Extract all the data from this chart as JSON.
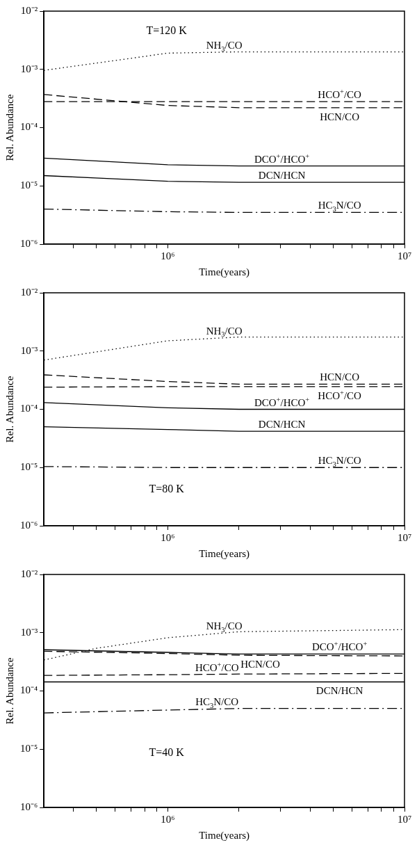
{
  "chart_data": [
    {
      "type": "line",
      "xlabel": "Time(years)",
      "ylabel": "Rel. Abundance",
      "annotations": [
        "T=120 K"
      ],
      "log": "xy",
      "legend": false,
      "marker": "none",
      "xlim": [
        300000,
        10000000
      ],
      "ylim": [
        1e-06,
        0.01
      ],
      "xticks": [
        {
          "value": 400000,
          "label": null
        },
        {
          "value": 500000,
          "label": null
        },
        {
          "value": 600000,
          "label": null
        },
        {
          "value": 700000,
          "label": null
        },
        {
          "value": 800000,
          "label": null
        },
        {
          "value": 900000,
          "label": null
        },
        {
          "value": 1000000,
          "label": "10⁶"
        },
        {
          "value": 2000000,
          "label": null
        },
        {
          "value": 3000000,
          "label": null
        },
        {
          "value": 4000000,
          "label": null
        },
        {
          "value": 5000000,
          "label": null
        },
        {
          "value": 6000000,
          "label": null
        },
        {
          "value": 7000000,
          "label": null
        },
        {
          "value": 8000000,
          "label": null
        },
        {
          "value": 9000000,
          "label": null
        },
        {
          "value": 10000000,
          "label": "10⁷"
        }
      ],
      "yticks": [
        {
          "value": 1e-06,
          "label": "10⁻⁶"
        },
        {
          "value": 1e-05,
          "label": "10⁻⁵"
        },
        {
          "value": 0.0001,
          "label": "10⁻⁴"
        },
        {
          "value": 0.001,
          "label": "10⁻³"
        },
        {
          "value": 0.01,
          "label": "10⁻²"
        }
      ],
      "x": [
        300000,
        1000000,
        2000000,
        10000000
      ],
      "series": [
        {
          "name": "NH$_{3}$/CO",
          "color": "#000000",
          "line_style": "dotted",
          "values": [
            0.00096,
            0.0019,
            0.002,
            0.002
          ]
        },
        {
          "name": "HCO$^{+}$/CO",
          "color": "#000000",
          "line_style": "dashed",
          "values": [
            0.00028,
            0.00028,
            0.00028,
            0.00028
          ]
        },
        {
          "name": "HCN/CO",
          "color": "#000000",
          "line_style": "dashed",
          "values": [
            0.00037,
            0.00024,
            0.00022,
            0.00022
          ]
        },
        {
          "name": "DCO$^{+}$/HCO$^{+}$",
          "color": "#000000",
          "line_style": "solid",
          "values": [
            3e-05,
            2.3e-05,
            2.2e-05,
            2.2e-05
          ]
        },
        {
          "name": "DCN/HCN",
          "color": "#000000",
          "line_style": "solid",
          "values": [
            1.5e-05,
            1.2e-05,
            1.15e-05,
            1.15e-05
          ]
        },
        {
          "name": "HC$_{3}$N/CO",
          "color": "#000000",
          "line_style": "dashdot",
          "values": [
            4e-06,
            3.6e-06,
            3.5e-06,
            3.5e-06
          ]
        }
      ]
    },
    {
      "type": "line",
      "xlabel": "Time(years)",
      "ylabel": "Rel. Abundance",
      "annotations": [
        "T=80 K"
      ],
      "log": "xy",
      "legend": false,
      "marker": "none",
      "xlim": [
        300000,
        10000000
      ],
      "ylim": [
        1e-06,
        0.01
      ],
      "xticks": [
        {
          "value": 400000,
          "label": null
        },
        {
          "value": 500000,
          "label": null
        },
        {
          "value": 600000,
          "label": null
        },
        {
          "value": 700000,
          "label": null
        },
        {
          "value": 800000,
          "label": null
        },
        {
          "value": 900000,
          "label": null
        },
        {
          "value": 1000000,
          "label": "10⁶"
        },
        {
          "value": 2000000,
          "label": null
        },
        {
          "value": 3000000,
          "label": null
        },
        {
          "value": 4000000,
          "label": null
        },
        {
          "value": 5000000,
          "label": null
        },
        {
          "value": 6000000,
          "label": null
        },
        {
          "value": 7000000,
          "label": null
        },
        {
          "value": 8000000,
          "label": null
        },
        {
          "value": 9000000,
          "label": null
        },
        {
          "value": 10000000,
          "label": "10⁷"
        }
      ],
      "yticks": [
        {
          "value": 1e-06,
          "label": "10⁻⁶"
        },
        {
          "value": 1e-05,
          "label": "10⁻⁵"
        },
        {
          "value": 0.0001,
          "label": "10⁻⁴"
        },
        {
          "value": 0.001,
          "label": "10⁻³"
        },
        {
          "value": 0.01,
          "label": "10⁻²"
        }
      ],
      "x": [
        300000,
        1000000,
        2000000,
        10000000
      ],
      "series": [
        {
          "name": "NH$_{3}$/CO",
          "color": "#000000",
          "line_style": "dotted",
          "values": [
            0.0007,
            0.0015,
            0.00174,
            0.00174
          ]
        },
        {
          "name": "HCN/CO",
          "color": "#000000",
          "line_style": "dashed",
          "values": [
            0.00039,
            0.0003,
            0.00027,
            0.00027
          ]
        },
        {
          "name": "HCO$^{+}$/CO",
          "color": "#000000",
          "line_style": "dashed",
          "values": [
            0.00024,
            0.000245,
            0.000245,
            0.000245
          ]
        },
        {
          "name": "DCO$^{+}$/HCO$^{+}$",
          "color": "#000000",
          "line_style": "solid",
          "values": [
            0.00013,
            0.000106,
            0.0001,
            0.0001
          ]
        },
        {
          "name": "DCN/HCN",
          "color": "#000000",
          "line_style": "solid",
          "values": [
            5e-05,
            4.5e-05,
            4.2e-05,
            4.2e-05
          ]
        },
        {
          "name": "HC$_{3}$N/CO",
          "color": "#000000",
          "line_style": "dashdot",
          "values": [
            1.04e-05,
            1e-05,
            1e-05,
            1e-05
          ]
        }
      ]
    },
    {
      "type": "line",
      "xlabel": "Time(years)",
      "ylabel": "Rel. Abundance",
      "annotations": [
        "T=40 K"
      ],
      "log": "xy",
      "legend": false,
      "marker": "none",
      "xlim": [
        300000,
        10000000
      ],
      "ylim": [
        1e-06,
        0.01
      ],
      "xticks": [
        {
          "value": 400000,
          "label": null
        },
        {
          "value": 500000,
          "label": null
        },
        {
          "value": 600000,
          "label": null
        },
        {
          "value": 700000,
          "label": null
        },
        {
          "value": 800000,
          "label": null
        },
        {
          "value": 900000,
          "label": null
        },
        {
          "value": 1000000,
          "label": "10⁶"
        },
        {
          "value": 2000000,
          "label": null
        },
        {
          "value": 3000000,
          "label": null
        },
        {
          "value": 4000000,
          "label": null
        },
        {
          "value": 5000000,
          "label": null
        },
        {
          "value": 6000000,
          "label": null
        },
        {
          "value": 7000000,
          "label": null
        },
        {
          "value": 8000000,
          "label": null
        },
        {
          "value": 9000000,
          "label": null
        },
        {
          "value": 10000000,
          "label": "10⁷"
        }
      ],
      "yticks": [
        {
          "value": 1e-06,
          "label": "10⁻⁶"
        },
        {
          "value": 1e-05,
          "label": "10⁻⁵"
        },
        {
          "value": 0.0001,
          "label": "10⁻⁴"
        },
        {
          "value": 0.001,
          "label": "10⁻³"
        },
        {
          "value": 0.01,
          "label": "10⁻²"
        }
      ],
      "x": [
        300000,
        1000000,
        2000000,
        10000000
      ],
      "series": [
        {
          "name": "NH$_{3}$/CO",
          "color": "#000000",
          "line_style": "dotted",
          "x": [
            300000,
            500000,
            1000000,
            2000000,
            10000000
          ],
          "values": [
            0.00034,
            0.00054,
            0.00082,
            0.00104,
            0.00113
          ]
        },
        {
          "name": "DCO$^{+}$/HCO$^{+}$",
          "color": "#000000",
          "line_style": "solid",
          "values": [
            0.00051,
            0.00046,
            0.00043,
            0.00043
          ]
        },
        {
          "name": "HCN/CO",
          "color": "#000000",
          "line_style": "dashed",
          "values": [
            0.00048,
            0.00044,
            0.00041,
            0.0004
          ]
        },
        {
          "name": "HCO$^{+}$/CO",
          "color": "#000000",
          "line_style": "dashed",
          "values": [
            0.000185,
            0.00019,
            0.000195,
            0.0002
          ]
        },
        {
          "name": "DCN/HCN",
          "color": "#000000",
          "line_style": "solid",
          "values": [
            0.000143,
            0.000143,
            0.000143,
            0.000143
          ]
        },
        {
          "name": "HC$_{3}$N/CO",
          "color": "#000000",
          "line_style": "dashdot",
          "values": [
            4.2e-05,
            4.7e-05,
            5e-05,
            5e-05
          ]
        }
      ]
    }
  ]
}
